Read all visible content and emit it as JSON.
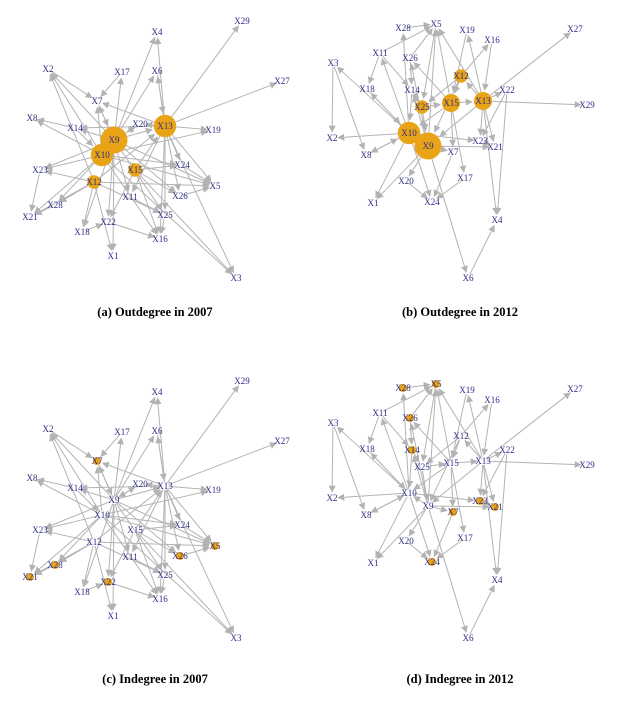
{
  "node_color": "#e8a317",
  "edge_color": "#b3b3b3",
  "label_color": "#2d2d86",
  "panels": [
    {
      "caption": "(a) Outdegree in 2007",
      "highlight": {
        "X9": 3,
        "X10": 2.5,
        "X13": 2.5,
        "X12": 1.5,
        "X15": 1.5
      }
    },
    {
      "caption": "(b) Outdegree in 2012",
      "highlight": {
        "X9": 3,
        "X10": 2.5,
        "X13": 2,
        "X15": 2,
        "X12": 1.5,
        "X25": 1.5
      }
    },
    {
      "caption": "(c) Indegree in 2007",
      "highlight": {
        "X7": 1.2,
        "X5": 1.2,
        "X21": 1,
        "X22": 1,
        "X26": 1,
        "X28": 1
      }
    },
    {
      "caption": "(d) Indegree in 2012",
      "highlight": {
        "X5": 1.2,
        "X7": 1.2,
        "X24": 1.1,
        "X28": 1,
        "X26": 1,
        "X14": 1,
        "X21": 1,
        "X23": 1
      }
    }
  ]
}
